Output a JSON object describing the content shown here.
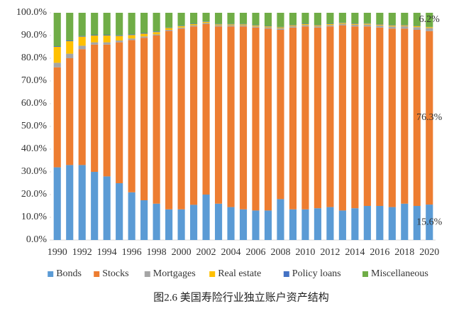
{
  "chart_data": {
    "type": "stacked_bar",
    "title": "图2.6  美国寿险行业独立账户资产结构",
    "categories": [
      "1990",
      null,
      "1992",
      null,
      "1994",
      null,
      "1996",
      null,
      "1998",
      null,
      "2000",
      null,
      "2002",
      null,
      "2004",
      null,
      "2006",
      null,
      "2008",
      null,
      "2010",
      null,
      "2012",
      null,
      "2014",
      null,
      "2016",
      null,
      "2018",
      null,
      "2020"
    ],
    "series": [
      {
        "name": "Bonds",
        "color": "#5b9bd5",
        "values": [
          32,
          33,
          33,
          30,
          28,
          25,
          21,
          17.5,
          16,
          13.5,
          13.5,
          15.5,
          20,
          16,
          14.5,
          13.5,
          13,
          13,
          18,
          13.5,
          13.5,
          14,
          14.5,
          13,
          14,
          15,
          15,
          14.5,
          16,
          15,
          15.6
        ],
        "value_labels": [
          null,
          null,
          null,
          null,
          null,
          null,
          null,
          null,
          null,
          null,
          null,
          null,
          null,
          null,
          null,
          null,
          null,
          null,
          null,
          null,
          null,
          null,
          null,
          null,
          null,
          null,
          null,
          null,
          null,
          null,
          "15.6%"
        ]
      },
      {
        "name": "Stocks",
        "color": "#ed7d31",
        "values": [
          44,
          47,
          51,
          56,
          58,
          62,
          67,
          71.5,
          74,
          78.5,
          79.5,
          78.5,
          75,
          78,
          79.5,
          80.5,
          80.5,
          80,
          74.5,
          80,
          80.5,
          79.5,
          79.5,
          81.5,
          80,
          79,
          78.5,
          78.5,
          77,
          77.5,
          76.3
        ],
        "value_labels": [
          null,
          null,
          null,
          null,
          null,
          null,
          null,
          null,
          null,
          null,
          null,
          null,
          null,
          null,
          null,
          null,
          null,
          null,
          null,
          null,
          null,
          null,
          null,
          null,
          null,
          null,
          null,
          null,
          null,
          null,
          "76.3%"
        ]
      },
      {
        "name": "Mortgages",
        "color": "#a5a5a5",
        "values": [
          2,
          2,
          1.5,
          1,
          1,
          0.8,
          0.7,
          0.6,
          0.5,
          0.5,
          0.5,
          0.5,
          0.5,
          0.5,
          0.5,
          0.5,
          0.5,
          0.6,
          0.7,
          0.6,
          0.6,
          0.6,
          0.6,
          0.6,
          0.7,
          0.8,
          0.9,
          1,
          1.1,
          1.2,
          1.4
        ]
      },
      {
        "name": "Real estate",
        "color": "#ffc000",
        "values": [
          7,
          5.5,
          4,
          3,
          3,
          2,
          1.5,
          1.2,
          1,
          0.8,
          0.6,
          0.5,
          0.5,
          0.4,
          0.4,
          0.4,
          0.4,
          0.4,
          0.4,
          0.4,
          0.4,
          0.4,
          0.4,
          0.4,
          0.4,
          0.4,
          0.4,
          0.4,
          0.4,
          0.4,
          0.4
        ]
      },
      {
        "name": "Policy loans",
        "color": "#4472c4",
        "values": [
          0.3,
          0.3,
          0.3,
          0.3,
          0.3,
          0.3,
          0.3,
          0.3,
          0.3,
          0.2,
          0.2,
          0.2,
          0.2,
          0.2,
          0.2,
          0.2,
          0.2,
          0.2,
          0.2,
          0.2,
          0.2,
          0.2,
          0.2,
          0.2,
          0.2,
          0.2,
          0.2,
          0.2,
          0.2,
          0.1,
          0.1
        ]
      },
      {
        "name": "Miscellaneous",
        "color": "#70ad47",
        "values": [
          14.7,
          12.2,
          10.2,
          9.7,
          9.7,
          9.9,
          9.5,
          8.9,
          8.2,
          6.5,
          5.7,
          4.8,
          3.8,
          4.9,
          4.9,
          4.9,
          5.4,
          5.8,
          6.2,
          5.3,
          4.8,
          5.3,
          4.8,
          4.3,
          4.7,
          4.6,
          5,
          5.4,
          5.3,
          5.8,
          6.2
        ],
        "value_labels": [
          null,
          null,
          null,
          null,
          null,
          null,
          null,
          null,
          null,
          null,
          null,
          null,
          null,
          null,
          null,
          null,
          null,
          null,
          null,
          null,
          null,
          null,
          null,
          null,
          null,
          null,
          null,
          null,
          null,
          null,
          "6.2%"
        ]
      }
    ],
    "ylim": [
      0,
      100
    ],
    "yticks": [
      {
        "value": 0,
        "label": "0.0%"
      },
      {
        "value": 10,
        "label": "10.0%"
      },
      {
        "value": 20,
        "label": "20.0%"
      },
      {
        "value": 30,
        "label": "30.0%"
      },
      {
        "value": 40,
        "label": "40.0%"
      },
      {
        "value": 50,
        "label": "50.0%"
      },
      {
        "value": 60,
        "label": "60.0%"
      },
      {
        "value": 70,
        "label": "70.0%"
      },
      {
        "value": 80,
        "label": "80.0%"
      },
      {
        "value": 90,
        "label": "90.0%"
      },
      {
        "value": 100,
        "label": "100.0%"
      }
    ],
    "legend": "bottom"
  }
}
